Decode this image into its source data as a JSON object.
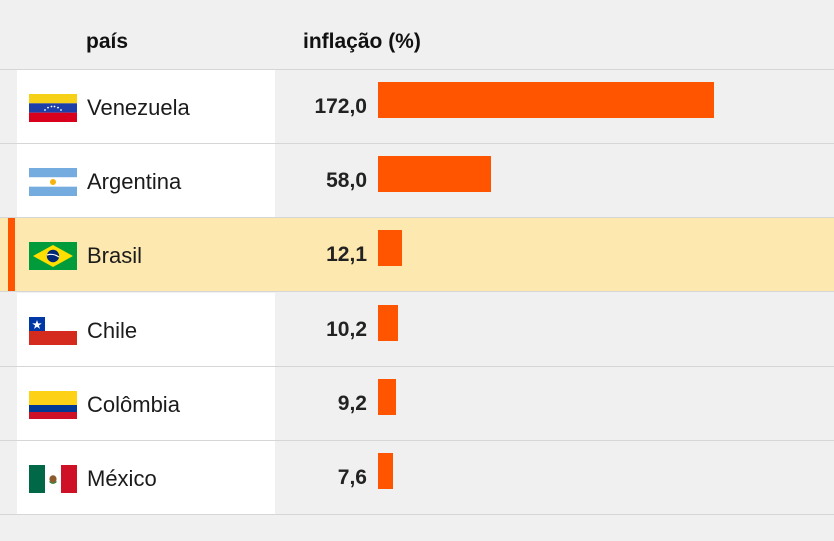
{
  "header": {
    "country_label": "país",
    "value_label": "inflação (%)"
  },
  "colors": {
    "bar": "#ff5500",
    "highlight_row": "#fde8b0",
    "accent": "#ff5500"
  },
  "chart_data": {
    "type": "bar",
    "orientation": "horizontal",
    "xlim": [
      0,
      172
    ],
    "categories": [
      "Venezuela",
      "Argentina",
      "Brasil",
      "Chile",
      "Colômbia",
      "México"
    ],
    "values": [
      172.0,
      58.0,
      12.1,
      10.2,
      9.2,
      7.6
    ],
    "value_labels": [
      "172,0",
      "58,0",
      "12,1",
      "10,2",
      "9,2",
      "7,6"
    ],
    "flags": [
      "venezuela-flag-icon",
      "argentina-flag-icon",
      "brazil-flag-icon",
      "chile-flag-icon",
      "colombia-flag-icon",
      "mexico-flag-icon"
    ],
    "highlighted": "Brasil"
  }
}
